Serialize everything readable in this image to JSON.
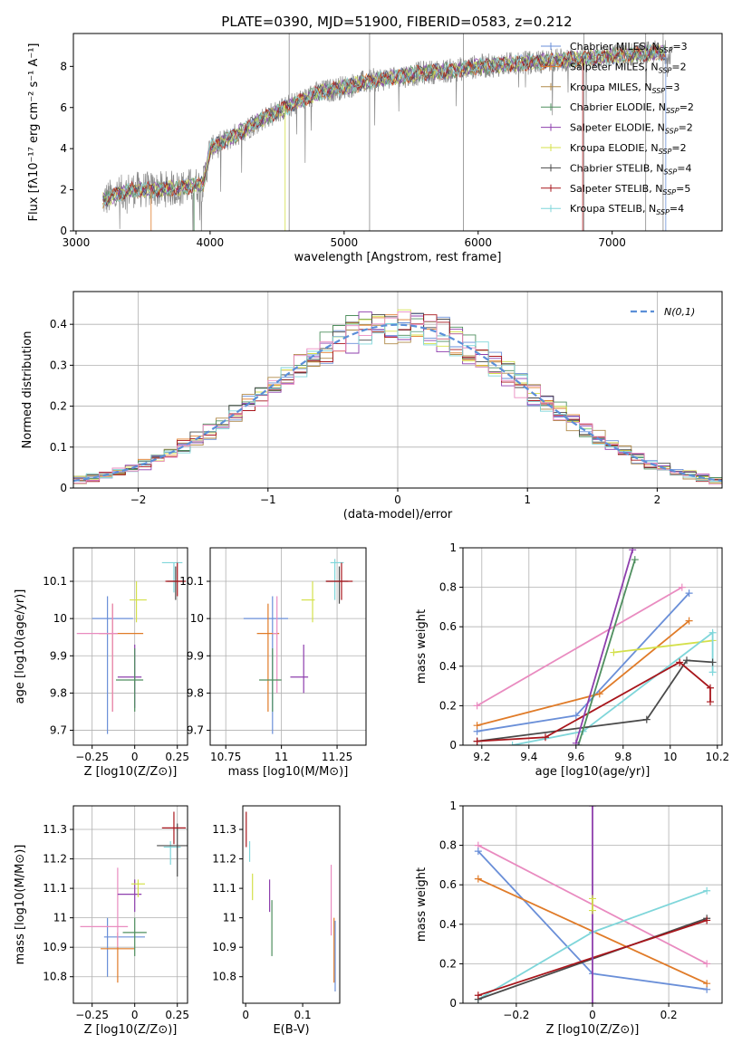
{
  "figure_title": "PLATE=0390, MJD=51900, FIBERID=0583, z=0.212",
  "colors": {
    "Chabrier MILES": "#6a8fd8",
    "Salpeter MILES": "#e07b28",
    "Kroupa MILES": "#b08a4a",
    "Chabrier ELODIE": "#4f8f5f",
    "Salpeter ELODIE": "#8e3fad",
    "Kroupa ELODIE": "#d4e04a",
    "Chabrier STELIB": "#4a4a4a",
    "Salpeter STELIB": "#a8161c",
    "Kroupa STELIB": "#7fd6da",
    "pink": "#e98bc0"
  },
  "legend_models": [
    {
      "prefix": "Chabrier MILES, N",
      "sub": "SSP",
      "suffix": "=3",
      "key": "Chabrier MILES"
    },
    {
      "prefix": "Salpeter MILES, N",
      "sub": "SSP",
      "suffix": "=2",
      "key": "Salpeter MILES"
    },
    {
      "prefix": "Kroupa MILES, N",
      "sub": "SSP",
      "suffix": "=3",
      "key": "Kroupa MILES"
    },
    {
      "prefix": "Chabrier ELODIE, N",
      "sub": "SSP",
      "suffix": "=2",
      "key": "Chabrier ELODIE"
    },
    {
      "prefix": "Salpeter ELODIE, N",
      "sub": "SSP",
      "suffix": "=2",
      "key": "Salpeter ELODIE"
    },
    {
      "prefix": "Kroupa ELODIE, N",
      "sub": "SSP",
      "suffix": "=2",
      "key": "Kroupa ELODIE"
    },
    {
      "prefix": "Chabrier STELIB, N",
      "sub": "SSP",
      "suffix": "=4",
      "key": "Chabrier STELIB"
    },
    {
      "prefix": "Salpeter STELIB, N",
      "sub": "SSP",
      "suffix": "=5",
      "key": "Salpeter STELIB"
    },
    {
      "prefix": "Kroupa STELIB, N",
      "sub": "SSP",
      "suffix": "=4",
      "key": "Kroupa STELIB"
    }
  ],
  "chart_data": [
    {
      "id": "spectrum",
      "type": "line",
      "xlabel": "wavelength [Angstrom, rest frame]",
      "ylabel": "Flux [fλ10⁻¹⁷ erg cm⁻² s⁻¹ A⁻¹]",
      "xlim": [
        2980,
        7820
      ],
      "ylim": [
        0,
        9.6
      ],
      "xticks": [
        3000,
        4000,
        5000,
        6000,
        7000
      ],
      "yticks": [
        0,
        2,
        4,
        6,
        8
      ],
      "continuum": {
        "x": [
          3200,
          3400,
          3600,
          3800,
          3950,
          4000,
          4200,
          4400,
          4600,
          4800,
          5000,
          5200,
          5400,
          5600,
          5800,
          6000,
          6200,
          6400,
          6600,
          6800,
          7000,
          7200,
          7400
        ],
        "y": [
          1.5,
          2.0,
          2.0,
          2.1,
          2.3,
          4.0,
          4.7,
          5.5,
          6.1,
          6.7,
          7.0,
          7.3,
          7.5,
          7.7,
          7.8,
          8.0,
          8.1,
          8.2,
          8.3,
          8.4,
          8.5,
          8.6,
          8.7
        ]
      }
    },
    {
      "id": "residuals",
      "type": "line",
      "xlabel": "(data-model)/error",
      "ylabel": "Normed distribution",
      "xlim": [
        -2.5,
        2.5
      ],
      "ylim": [
        0,
        0.48
      ],
      "xticks": [
        -2,
        -1,
        0,
        1,
        2
      ],
      "yticks": [
        0.0,
        0.1,
        0.2,
        0.3,
        0.4
      ],
      "legend": "N(0,1)",
      "bin_width": 0.1,
      "gaussian": {
        "mu": 0,
        "sigma": 1
      }
    },
    {
      "id": "age-vs-Z",
      "type": "scatter",
      "xlabel": "Z [log10(Z/Z⊙)]",
      "ylabel": "age  [log10(age/yr)]",
      "xlim": [
        -0.36,
        0.31
      ],
      "ylim": [
        9.66,
        10.19
      ],
      "xticks": [
        -0.25,
        0.0,
        0.25
      ],
      "yticks": [
        9.7,
        9.8,
        9.9,
        10.0,
        10.1
      ],
      "points": [
        {
          "key": "Chabrier MILES",
          "x": -0.13,
          "xerr": 0.12,
          "y": 10.0,
          "yerr": 0.015,
          "vx": -0.16,
          "vy": [
            9.69,
            10.06
          ]
        },
        {
          "key": "Salpeter MILES",
          "x": -0.08,
          "xerr": 0.13,
          "y": 9.96,
          "yerr": 0.02,
          "vx": -0.13,
          "vy": [
            9.75,
            10.04
          ]
        },
        {
          "key": "pink",
          "x": -0.22,
          "xerr": 0.12,
          "y": 9.96,
          "yerr": 0.02,
          "vx": -0.13,
          "vy": [
            9.75,
            10.04
          ]
        },
        {
          "key": "Salpeter ELODIE",
          "x": -0.03,
          "xerr": 0.07,
          "y": 9.843,
          "yerr": 0.02,
          "vx": 0.0,
          "vy": [
            9.76,
            9.93
          ]
        },
        {
          "key": "Chabrier ELODIE",
          "x": -0.03,
          "xerr": 0.08,
          "y": 9.835,
          "yerr": 0.02,
          "vx": 0.0,
          "vy": [
            9.75,
            9.92
          ]
        },
        {
          "key": "Kroupa ELODIE",
          "x": 0.02,
          "xerr": 0.05,
          "y": 10.05,
          "yerr": 0.05,
          "vx": 0.01,
          "vy": [
            9.99,
            10.1
          ]
        },
        {
          "key": "Kroupa STELIB",
          "x": 0.22,
          "xerr": 0.06,
          "y": 10.15,
          "yerr": 0.03,
          "vx": 0.23,
          "vy": [
            10.07,
            10.15
          ]
        },
        {
          "key": "Chabrier STELIB",
          "x": 0.24,
          "xerr": 0.05,
          "y": 10.1,
          "yerr": 0.02,
          "vx": 0.24,
          "vy": [
            10.05,
            10.14
          ]
        },
        {
          "key": "Salpeter STELIB",
          "x": 0.24,
          "xerr": 0.06,
          "y": 10.1,
          "yerr": 0.02,
          "vx": 0.25,
          "vy": [
            10.06,
            10.15
          ]
        }
      ]
    },
    {
      "id": "age-vs-mass",
      "type": "scatter",
      "xlabel": "mass [log10(M/M⊙)]",
      "ylabel": "",
      "xlim": [
        10.68,
        11.38
      ],
      "ylim": [
        9.66,
        10.19
      ],
      "xticks": [
        10.75,
        11.0,
        11.25
      ],
      "yticks": [
        9.7,
        9.8,
        9.9,
        10.0,
        10.1
      ],
      "points": [
        {
          "key": "Chabrier MILES",
          "x": 10.93,
          "xerr": 0.1,
          "y": 10.0,
          "vx": 10.96,
          "vy": [
            9.69,
            10.06
          ]
        },
        {
          "key": "Salpeter MILES",
          "x": 10.94,
          "xerr": 0.05,
          "y": 9.96,
          "vx": 10.94,
          "vy": [
            9.75,
            10.04
          ]
        },
        {
          "key": "pink",
          "x": 10.97,
          "xerr": 0.01,
          "y": 9.96,
          "vx": 10.98,
          "vy": [
            9.8,
            10.06
          ]
        },
        {
          "key": "Chabrier ELODIE",
          "x": 10.95,
          "xerr": 0.05,
          "y": 9.835,
          "vx": 10.96,
          "vy": [
            9.75,
            9.92
          ]
        },
        {
          "key": "Salpeter ELODIE",
          "x": 11.08,
          "xerr": 0.04,
          "y": 9.843,
          "vx": 11.1,
          "vy": [
            9.8,
            9.93
          ]
        },
        {
          "key": "Kroupa ELODIE",
          "x": 11.12,
          "xerr": 0.03,
          "y": 10.05,
          "vx": 11.14,
          "vy": [
            9.99,
            10.1
          ]
        },
        {
          "key": "Kroupa STELIB",
          "x": 11.25,
          "xerr": 0.03,
          "y": 10.15,
          "vx": 11.24,
          "vy": [
            10.05,
            10.16
          ]
        },
        {
          "key": "Chabrier STELIB",
          "x": 11.25,
          "xerr": 0.05,
          "y": 10.1,
          "vx": 11.26,
          "vy": [
            10.04,
            10.14
          ]
        },
        {
          "key": "Salpeter STELIB",
          "x": 11.26,
          "xerr": 0.06,
          "y": 10.1,
          "vx": 11.27,
          "vy": [
            10.05,
            10.15
          ]
        }
      ]
    },
    {
      "id": "massweight-vs-age",
      "type": "line",
      "xlabel": "age  [log10(age/yr)]",
      "ylabel": "mass weight",
      "xlim": [
        9.12,
        10.22
      ],
      "ylim": [
        0.0,
        1.0
      ],
      "xticks": [
        9.2,
        9.4,
        9.6,
        9.8,
        10.0,
        10.2
      ],
      "yticks": [
        0.0,
        0.2,
        0.4,
        0.6,
        0.8,
        1.0
      ],
      "series": [
        {
          "key": "pink",
          "x": [
            9.18,
            10.05
          ],
          "y": [
            0.2,
            0.8
          ]
        },
        {
          "key": "Chabrier MILES",
          "x": [
            9.18,
            9.6,
            10.08
          ],
          "y": [
            0.07,
            0.15,
            0.77
          ]
        },
        {
          "key": "Salpeter MILES",
          "x": [
            9.18,
            9.7,
            10.08
          ],
          "y": [
            0.1,
            0.26,
            0.63
          ]
        },
        {
          "key": "Kroupa ELODIE",
          "x": [
            9.76,
            10.18
          ],
          "y": [
            0.47,
            0.53
          ]
        },
        {
          "key": "Kroupa STELIB",
          "x": [
            9.33,
            9.63,
            10.18,
            10.18
          ],
          "y": [
            0.0,
            0.07,
            0.57,
            0.37
          ]
        },
        {
          "key": "Chabrier STELIB",
          "x": [
            9.18,
            9.9,
            10.07,
            10.18
          ],
          "y": [
            0.02,
            0.13,
            0.43,
            0.42
          ]
        },
        {
          "key": "Salpeter STELIB",
          "x": [
            9.18,
            9.47,
            10.04,
            10.17,
            10.17
          ],
          "y": [
            0.02,
            0.04,
            0.42,
            0.29,
            0.22
          ]
        },
        {
          "key": "Chabrier ELODIE",
          "x": [
            9.61,
            9.85
          ],
          "y": [
            0.0,
            0.94
          ]
        },
        {
          "key": "Salpeter ELODIE",
          "x": [
            9.6,
            9.84
          ],
          "y": [
            0.01,
            0.99
          ]
        }
      ]
    },
    {
      "id": "mass-vs-Z",
      "type": "scatter",
      "xlabel": "Z [log10(Z/Z⊙)]",
      "ylabel": "mass [log10(M/M⊙)]",
      "xlim": [
        -0.36,
        0.31
      ],
      "ylim": [
        10.71,
        11.38
      ],
      "xticks": [
        -0.25,
        0.0,
        0.25
      ],
      "yticks": [
        10.8,
        10.9,
        11.0,
        11.1,
        11.2,
        11.3
      ],
      "points": [
        {
          "key": "Chabrier MILES",
          "x": -0.06,
          "xerr": 0.12,
          "y": 10.935,
          "vx": -0.16,
          "vy": [
            10.8,
            11.0
          ]
        },
        {
          "key": "Salpeter MILES",
          "x": -0.1,
          "xerr": 0.1,
          "y": 10.895,
          "vx": -0.1,
          "vy": [
            10.78,
            10.95
          ]
        },
        {
          "key": "pink",
          "x": -0.18,
          "xerr": 0.14,
          "y": 10.97,
          "vx": -0.1,
          "vy": [
            10.9,
            11.17
          ]
        },
        {
          "key": "Salpeter ELODIE",
          "x": -0.03,
          "xerr": 0.07,
          "y": 11.08,
          "vx": 0.0,
          "vy": [
            11.02,
            11.13
          ]
        },
        {
          "key": "Chabrier ELODIE",
          "x": 0.0,
          "xerr": 0.07,
          "y": 10.95,
          "vx": 0.0,
          "vy": [
            10.87,
            11.0
          ]
        },
        {
          "key": "Kroupa ELODIE",
          "x": 0.02,
          "xerr": 0.04,
          "y": 11.115,
          "vx": 0.02,
          "vy": [
            11.07,
            11.13
          ]
        },
        {
          "key": "Kroupa STELIB",
          "x": 0.22,
          "xerr": 0.05,
          "y": 11.24,
          "vx": 0.21,
          "vy": [
            11.18,
            11.26
          ]
        },
        {
          "key": "Chabrier STELIB",
          "x": 0.23,
          "xerr": 0.1,
          "y": 11.245,
          "vx": 0.25,
          "vy": [
            11.14,
            11.32
          ]
        },
        {
          "key": "Salpeter STELIB",
          "x": 0.23,
          "xerr": 0.07,
          "y": 11.305,
          "vx": 0.23,
          "vy": [
            11.25,
            11.36
          ]
        }
      ]
    },
    {
      "id": "mass-vs-ebv",
      "type": "scatter",
      "xlabel": "E(B-V)",
      "ylabel": "",
      "xlim": [
        -0.005,
        0.165
      ],
      "ylim": [
        10.71,
        11.38
      ],
      "xticks": [
        0.0,
        0.1
      ],
      "yticks": [
        10.8,
        10.9,
        11.0,
        11.1,
        11.2,
        11.3
      ],
      "points": [
        {
          "key": "Salpeter STELIB",
          "x": 0.001,
          "vy": [
            11.24,
            11.36
          ]
        },
        {
          "key": "Kroupa STELIB",
          "x": 0.007,
          "vy": [
            11.19,
            11.26
          ]
        },
        {
          "key": "Kroupa ELODIE",
          "x": 0.012,
          "vy": [
            11.06,
            11.15
          ]
        },
        {
          "key": "Salpeter ELODIE",
          "x": 0.042,
          "vy": [
            11.02,
            11.13
          ]
        },
        {
          "key": "Chabrier ELODIE",
          "x": 0.046,
          "vy": [
            10.87,
            11.06
          ]
        },
        {
          "key": "pink",
          "x": 0.15,
          "vy": [
            10.94,
            11.18
          ]
        },
        {
          "key": "Salpeter MILES",
          "x": 0.155,
          "vy": [
            10.78,
            11.0
          ]
        },
        {
          "key": "Chabrier MILES",
          "x": 0.157,
          "vy": [
            10.75,
            10.99
          ]
        }
      ]
    },
    {
      "id": "massweight-vs-Z",
      "type": "line",
      "xlabel": "Z [log10(Z/Z⊙)]",
      "ylabel": "mass weight",
      "xlim": [
        -0.34,
        0.34
      ],
      "ylim": [
        0.0,
        1.0
      ],
      "xticks": [
        -0.2,
        0.0,
        0.2
      ],
      "yticks": [
        0.0,
        0.2,
        0.4,
        0.6,
        0.8,
        1.0
      ],
      "series": [
        {
          "key": "pink",
          "x": [
            -0.3,
            0.3
          ],
          "y": [
            0.8,
            0.2
          ]
        },
        {
          "key": "Chabrier MILES",
          "x": [
            -0.3,
            0.0,
            0.3
          ],
          "y": [
            0.77,
            0.15,
            0.07
          ]
        },
        {
          "key": "Salpeter MILES",
          "x": [
            -0.3,
            0.3
          ],
          "y": [
            0.63,
            0.1
          ]
        },
        {
          "key": "Kroupa STELIB",
          "x": [
            -0.3,
            0.0,
            0.3
          ],
          "y": [
            0.02,
            0.36,
            0.57
          ]
        },
        {
          "key": "Chabrier STELIB",
          "x": [
            -0.3,
            0.3
          ],
          "y": [
            0.02,
            0.43
          ]
        },
        {
          "key": "Salpeter STELIB",
          "x": [
            -0.3,
            0.3
          ],
          "y": [
            0.04,
            0.42
          ]
        },
        {
          "key": "Salpeter ELODIE",
          "x": [
            0.0,
            0.0
          ],
          "y": [
            0.0,
            1.0
          ]
        },
        {
          "key": "Kroupa ELODIE",
          "x": [
            0.0,
            0.0
          ],
          "y": [
            0.47,
            0.53
          ]
        }
      ]
    }
  ]
}
